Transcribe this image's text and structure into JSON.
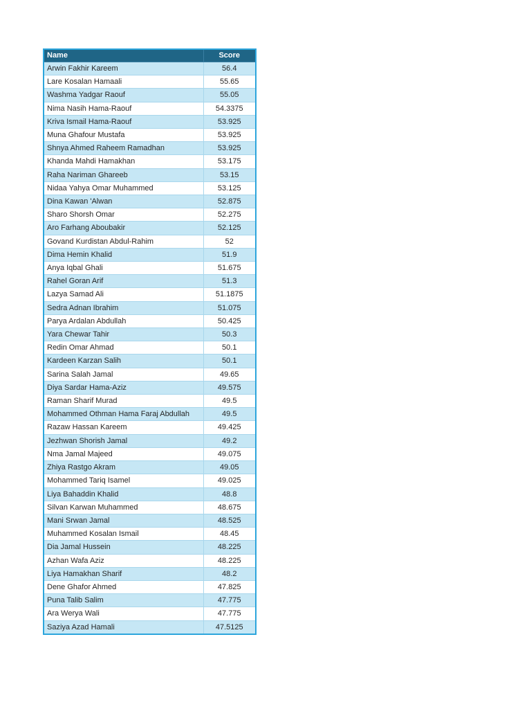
{
  "colors": {
    "header_bg": "#1F6586",
    "header_text": "#FFFFFF",
    "outer_border": "#2CA5DC",
    "inner_border": "#A8D6EC",
    "alt_row_bg": "#C6E7F5",
    "row_bg": "#FFFFFF",
    "text": "#262626"
  },
  "table": {
    "columns": [
      {
        "label": "Name"
      },
      {
        "label": "Score"
      }
    ],
    "rows": [
      {
        "name": "Arwin Fakhir Kareem",
        "score": "56.4"
      },
      {
        "name": "Lare Kosalan Hamaali",
        "score": "55.65"
      },
      {
        "name": "Washma Yadgar Raouf",
        "score": "55.05"
      },
      {
        "name": "Nima Nasih Hama-Raouf",
        "score": "54.3375"
      },
      {
        "name": "Kriva Ismail Hama-Raouf",
        "score": "53.925"
      },
      {
        "name": "Muna Ghafour Mustafa",
        "score": "53.925"
      },
      {
        "name": "Shnya Ahmed Raheem Ramadhan",
        "score": "53.925"
      },
      {
        "name": "Khanda Mahdi Hamakhan",
        "score": "53.175"
      },
      {
        "name": "Raha Nariman Ghareeb",
        "score": "53.15"
      },
      {
        "name": "Nidaa Yahya Omar Muhammed",
        "score": "53.125"
      },
      {
        "name": "Dina Kawan 'Alwan",
        "score": "52.875"
      },
      {
        "name": "Sharo Shorsh Omar",
        "score": "52.275"
      },
      {
        "name": "Aro Farhang Aboubakir",
        "score": "52.125"
      },
      {
        "name": "Govand Kurdistan Abdul-Rahim",
        "score": "52"
      },
      {
        "name": "Dima Hemin Khalid",
        "score": "51.9"
      },
      {
        "name": "Anya Iqbal Ghali",
        "score": "51.675"
      },
      {
        "name": "Rahel Goran Arif",
        "score": "51.3"
      },
      {
        "name": "Lazya Samad Ali",
        "score": "51.1875"
      },
      {
        "name": "Sedra Adnan Ibrahim",
        "score": "51.075"
      },
      {
        "name": "Parya Ardalan Abdullah",
        "score": "50.425"
      },
      {
        "name": "Yara Chewar Tahir",
        "score": "50.3"
      },
      {
        "name": "Redin Omar Ahmad",
        "score": "50.1"
      },
      {
        "name": "Kardeen Karzan Salih",
        "score": "50.1"
      },
      {
        "name": "Sarina Salah Jamal",
        "score": "49.65"
      },
      {
        "name": "Diya Sardar Hama-Aziz",
        "score": "49.575"
      },
      {
        "name": "Raman Sharif Murad",
        "score": "49.5"
      },
      {
        "name": "Mohammed Othman Hama Faraj Abdullah",
        "score": "49.5"
      },
      {
        "name": "Razaw Hassan Kareem",
        "score": "49.425"
      },
      {
        "name": "Jezhwan Shorish Jamal",
        "score": "49.2"
      },
      {
        "name": "Nma Jamal Majeed",
        "score": "49.075"
      },
      {
        "name": "Zhiya Rastgo Akram",
        "score": "49.05"
      },
      {
        "name": "Mohammed Tariq Isamel",
        "score": "49.025"
      },
      {
        "name": "Liya Bahaddin Khalid",
        "score": "48.8"
      },
      {
        "name": "Silvan Karwan Muhammed",
        "score": "48.675"
      },
      {
        "name": "Mani Srwan Jamal",
        "score": "48.525"
      },
      {
        "name": "Muhammed Kosalan Ismail",
        "score": "48.45"
      },
      {
        "name": "Dia Jamal Hussein",
        "score": "48.225"
      },
      {
        "name": "Azhan Wafa Aziz",
        "score": "48.225"
      },
      {
        "name": "Liya Hamakhan Sharif",
        "score": "48.2"
      },
      {
        "name": "Dene Ghafor Ahmed",
        "score": "47.825"
      },
      {
        "name": "Puna Talib Salim",
        "score": "47.775"
      },
      {
        "name": "Ara Werya Wali",
        "score": "47.775"
      },
      {
        "name": "Saziya Azad Hamali",
        "score": "47.5125"
      }
    ]
  }
}
